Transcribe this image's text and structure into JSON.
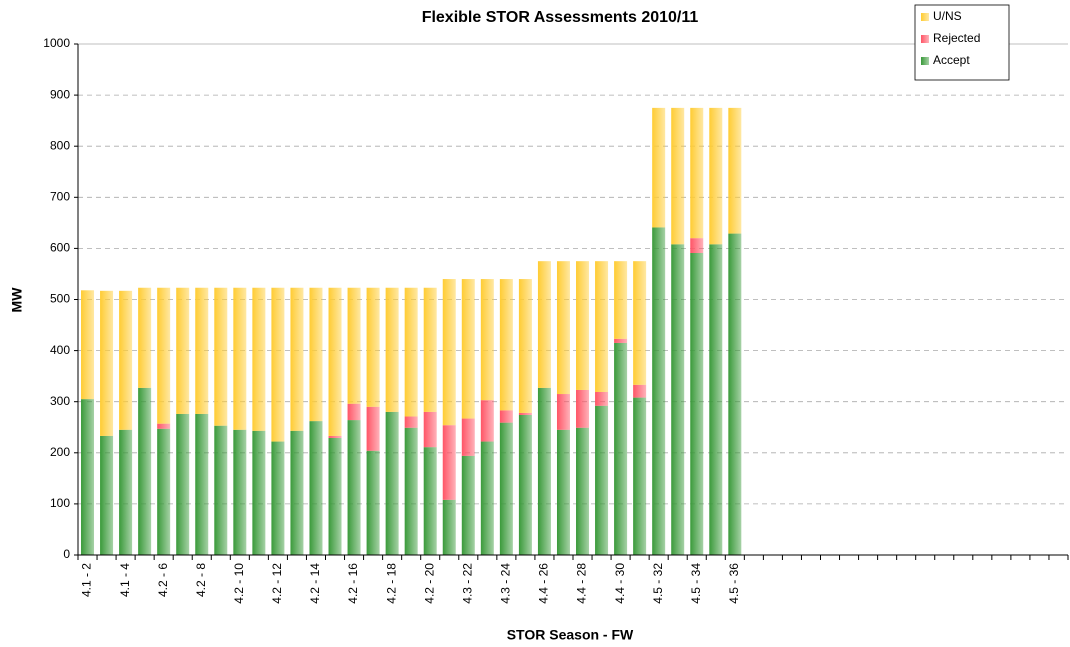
{
  "chart_data": {
    "type": "stacked_bar",
    "title": "Flexible STOR Assessments 2010/11",
    "x_label": "STOR Season - FW",
    "y_label": "MW",
    "categories": [
      "4.1 - 2",
      null,
      "4.1 - 4",
      null,
      "4.2 - 6",
      null,
      "4.2 - 8",
      null,
      "4.2 - 10",
      null,
      "4.2 - 12",
      null,
      "4.2 - 14",
      null,
      "4.2 - 16",
      null,
      "4.2 - 18",
      null,
      "4.2 - 20",
      null,
      "4.3 - 22",
      null,
      "4.3 - 24",
      null,
      "4.4 - 26",
      null,
      "4.4 - 28",
      null,
      "4.4 - 30",
      null,
      "4.5 - 32",
      null,
      "4.5 - 34",
      null,
      "4.5 - 36",
      null,
      null,
      null,
      null,
      null,
      null,
      null,
      null,
      null,
      null,
      null,
      null,
      null,
      null,
      null,
      null,
      null
    ],
    "series": [
      {
        "name": "Accept",
        "color": "#3a9a3a",
        "values": [
          305,
          233,
          245,
          327,
          247,
          276,
          276,
          253,
          245,
          243,
          222,
          243,
          262,
          229,
          264,
          204,
          280,
          249,
          211,
          108,
          194,
          222,
          259,
          274,
          327,
          245,
          249,
          292,
          415,
          308,
          641,
          608,
          591,
          608,
          629,
          null,
          null,
          null,
          null,
          null,
          null,
          null,
          null,
          null,
          null,
          null,
          null,
          null,
          null,
          null,
          null,
          null
        ]
      },
      {
        "name": "Rejected",
        "color": "#ff5566",
        "values": [
          0,
          0,
          0,
          0,
          10,
          0,
          0,
          0,
          0,
          0,
          0,
          0,
          0,
          4,
          32,
          86,
          0,
          22,
          69,
          146,
          73,
          81,
          24,
          4,
          0,
          70,
          74,
          27,
          8,
          25,
          0,
          0,
          29,
          0,
          0,
          null,
          null,
          null,
          null,
          null,
          null,
          null,
          null,
          null,
          null,
          null,
          null,
          null,
          null,
          null,
          null,
          null
        ]
      },
      {
        "name": "U/NS",
        "color": "#ffcc33",
        "values": [
          213,
          284,
          272,
          196,
          266,
          247,
          247,
          270,
          278,
          280,
          301,
          280,
          261,
          290,
          227,
          233,
          243,
          252,
          243,
          286,
          273,
          237,
          257,
          262,
          248,
          260,
          252,
          256,
          152,
          242,
          234,
          267,
          255,
          267,
          246,
          null,
          null,
          null,
          null,
          null,
          null,
          null,
          null,
          null,
          null,
          null,
          null,
          null,
          null,
          null,
          null,
          null
        ]
      }
    ],
    "ylim": [
      0,
      1000
    ],
    "yticks": [
      0,
      100,
      200,
      300,
      400,
      500,
      600,
      700,
      800,
      900,
      1000
    ],
    "grid": true,
    "legend": "upper right"
  }
}
